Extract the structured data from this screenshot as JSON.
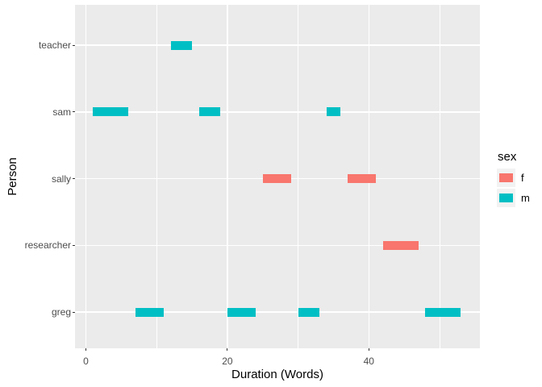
{
  "chart_data": {
    "type": "bar",
    "subtype": "horizontal_segments_gantt",
    "title": "",
    "xlabel": "Duration (Words)",
    "ylabel": "Person",
    "categories": [
      "teacher",
      "sam",
      "sally",
      "researcher",
      "greg"
    ],
    "categories_order": "top_to_bottom",
    "x_ticks": [
      0,
      20,
      40
    ],
    "x_minor_gridlines": [
      10,
      30,
      50
    ],
    "xlim": [
      -1.5,
      55.7
    ],
    "grid": "white major and minor verticals, white major horizontals on gray panel",
    "legend": {
      "title": "sex",
      "position": "right",
      "entries": [
        {
          "label": "f",
          "color": "#F8766D"
        },
        {
          "label": "m",
          "color": "#00BFC4"
        }
      ]
    },
    "series": [
      {
        "name": "f",
        "color": "#F8766D",
        "segments": [
          {
            "person": "sally",
            "start": 25,
            "end": 29
          },
          {
            "person": "sally",
            "start": 37,
            "end": 41
          },
          {
            "person": "researcher",
            "start": 42,
            "end": 47
          }
        ]
      },
      {
        "name": "m",
        "color": "#00BFC4",
        "segments": [
          {
            "person": "teacher",
            "start": 12,
            "end": 15
          },
          {
            "person": "sam",
            "start": 1,
            "end": 6
          },
          {
            "person": "sam",
            "start": 16,
            "end": 19
          },
          {
            "person": "sam",
            "start": 34,
            "end": 36
          },
          {
            "person": "greg",
            "start": 7,
            "end": 11
          },
          {
            "person": "greg",
            "start": 20,
            "end": 24
          },
          {
            "person": "greg",
            "start": 30,
            "end": 33
          },
          {
            "person": "greg",
            "start": 48,
            "end": 53
          }
        ]
      }
    ],
    "colors": {
      "f": "#F8766D",
      "m": "#00BFC4",
      "panel_bg": "#EBEBEB",
      "gridline": "#FFFFFF",
      "axis_text": "#4D4D4D",
      "axis_title": "#000000",
      "tick_mark": "#333333",
      "legend_key_bg": "#F2F2F2",
      "background": "#FFFFFF"
    }
  }
}
